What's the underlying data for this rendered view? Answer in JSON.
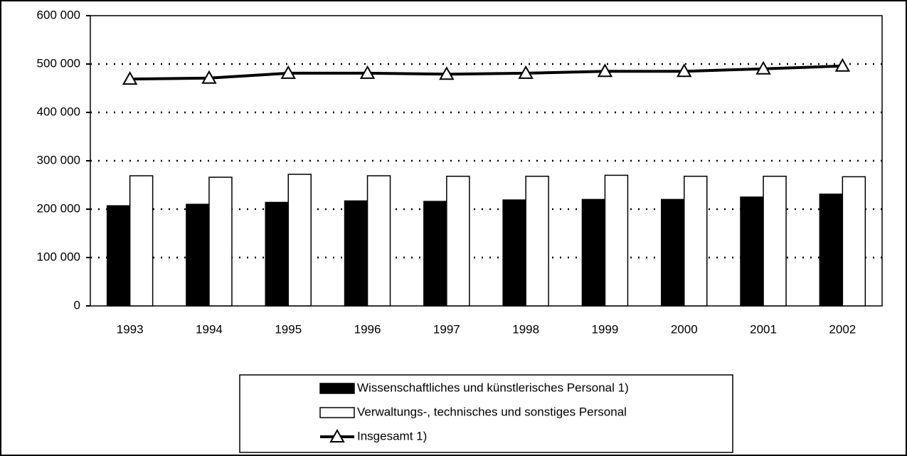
{
  "chart_data": {
    "type": "bar",
    "categories": [
      "1993",
      "1994",
      "1995",
      "1996",
      "1997",
      "1998",
      "1999",
      "2000",
      "2001",
      "2002"
    ],
    "series": [
      {
        "name": "Wissenschaftliches und künstlerisches Personal 1)",
        "color": "#000000",
        "values": [
          207000,
          210000,
          214000,
          217000,
          216000,
          219000,
          220000,
          220000,
          225000,
          231000
        ]
      },
      {
        "name": "Verwaltungs-, technisches und sonstiges Personal",
        "color": "#ffffff",
        "values": [
          269000,
          266000,
          272000,
          269000,
          268000,
          268000,
          270000,
          268000,
          268000,
          267000
        ]
      },
      {
        "name": "Insgesamt 1)",
        "color": "#000000",
        "type": "line",
        "values": [
          469000,
          471000,
          481000,
          481000,
          479000,
          481000,
          485000,
          485000,
          490000,
          496000
        ]
      }
    ],
    "ylim": [
      0,
      600000
    ],
    "yticks": [
      0,
      {
        "value": 100000,
        "label": "100 000"
      },
      {
        "value": 200000,
        "label": "200 000"
      },
      {
        "value": 300000,
        "label": "300 000"
      },
      {
        "value": 400000,
        "label": "400 000"
      },
      {
        "value": 500000,
        "label": "500 000"
      },
      {
        "value": 600000,
        "label": "600 000"
      }
    ],
    "grid": true,
    "legend": "bottom"
  }
}
